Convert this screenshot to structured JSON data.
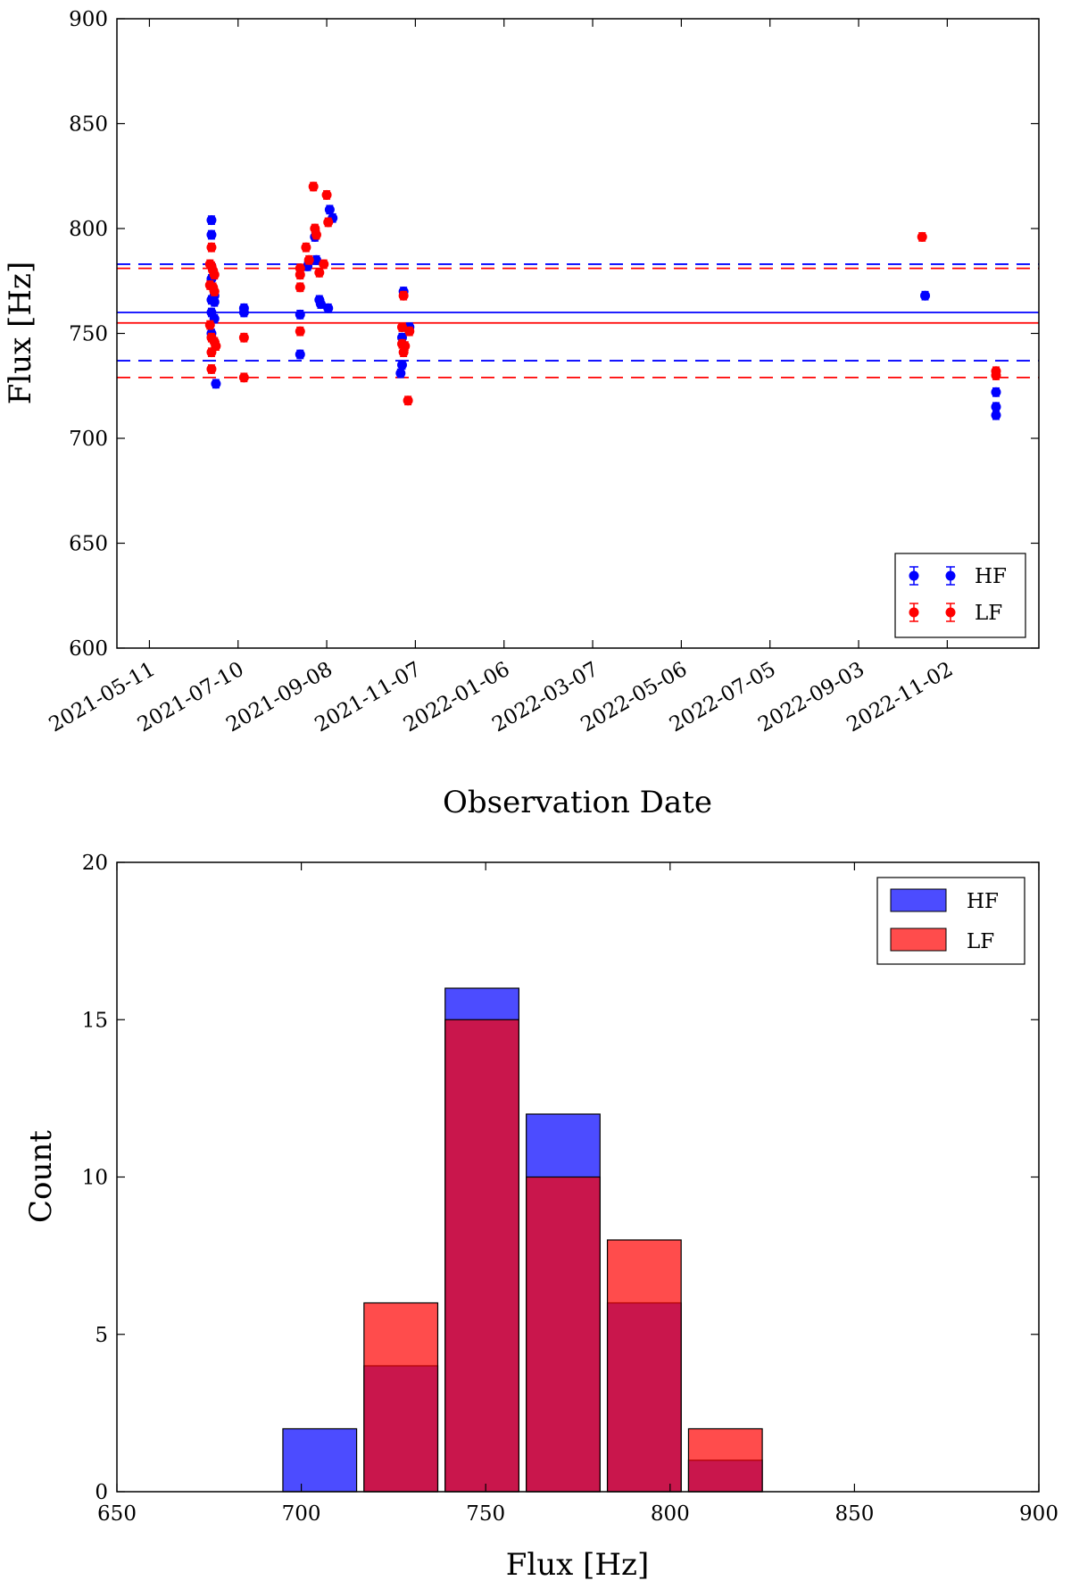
{
  "chart_data": [
    {
      "type": "scatter",
      "title": "",
      "xlabel": "Observation Date",
      "ylabel": "Flux [Hz]",
      "ylim": [
        600,
        900
      ],
      "yticks": [
        "600",
        "650",
        "700",
        "750",
        "800",
        "850",
        "900"
      ],
      "xlim_days": [
        -22,
        602
      ],
      "xticks": [
        {
          "label": "2021-05-11",
          "day": 0
        },
        {
          "label": "2021-07-10",
          "day": 60
        },
        {
          "label": "2021-09-08",
          "day": 120
        },
        {
          "label": "2021-11-07",
          "day": 180
        },
        {
          "label": "2022-01-06",
          "day": 240
        },
        {
          "label": "2022-03-07",
          "day": 300
        },
        {
          "label": "2022-05-06",
          "day": 360
        },
        {
          "label": "2022-07-05",
          "day": 420
        },
        {
          "label": "2022-09-03",
          "day": 480
        },
        {
          "label": "2022-11-02",
          "day": 540
        }
      ],
      "legend": {
        "location": "lower-right",
        "entries": [
          "HF",
          "LF"
        ]
      },
      "series": [
        {
          "name": "HF",
          "color": "#0000ff",
          "mean": 760,
          "band": [
            737,
            783
          ],
          "error": 2,
          "points": [
            [
              42,
              804
            ],
            [
              42,
              797
            ],
            [
              42,
              776
            ],
            [
              42,
              766
            ],
            [
              42,
              760
            ],
            [
              42,
              750
            ],
            [
              44,
              768
            ],
            [
              44,
              765
            ],
            [
              44,
              757
            ],
            [
              45,
              726
            ],
            [
              64,
              762
            ],
            [
              64,
              760
            ],
            [
              102,
              759
            ],
            [
              102,
              740
            ],
            [
              107,
              782
            ],
            [
              112,
              796
            ],
            [
              113,
              785
            ],
            [
              115,
              766
            ],
            [
              116,
              764
            ],
            [
              121,
              762
            ],
            [
              122,
              809
            ],
            [
              124,
              805
            ],
            [
              172,
              770
            ],
            [
              171,
              735
            ],
            [
              170,
              731
            ],
            [
              171,
              748
            ],
            [
              176,
              753
            ],
            [
              525,
              768
            ],
            [
              573,
              722
            ],
            [
              573,
              715
            ],
            [
              573,
              711
            ]
          ]
        },
        {
          "name": "LF",
          "color": "#ff0000",
          "mean": 755,
          "band": [
            729,
            781
          ],
          "error": 2,
          "points": [
            [
              41,
              783
            ],
            [
              41,
              773
            ],
            [
              41,
              754
            ],
            [
              42,
              791
            ],
            [
              42,
              782
            ],
            [
              42,
              748
            ],
            [
              42,
              741
            ],
            [
              42,
              733
            ],
            [
              43,
              780
            ],
            [
              43,
              772
            ],
            [
              44,
              770
            ],
            [
              44,
              778
            ],
            [
              44,
              746
            ],
            [
              45,
              744
            ],
            [
              64,
              748
            ],
            [
              64,
              729
            ],
            [
              102,
              781
            ],
            [
              102,
              778
            ],
            [
              102,
              772
            ],
            [
              102,
              751
            ],
            [
              106,
              791
            ],
            [
              108,
              785
            ],
            [
              111,
              820
            ],
            [
              112,
              800
            ],
            [
              113,
              797
            ],
            [
              115,
              779
            ],
            [
              118,
              783
            ],
            [
              120,
              816
            ],
            [
              121,
              803
            ],
            [
              171,
              753
            ],
            [
              171,
              745
            ],
            [
              172,
              741
            ],
            [
              172,
              768
            ],
            [
              173,
              744
            ],
            [
              175,
              718
            ],
            [
              176,
              751
            ],
            [
              523,
              796
            ],
            [
              573,
              732
            ],
            [
              573,
              730
            ]
          ]
        }
      ]
    },
    {
      "type": "bar",
      "title": "",
      "xlabel": "Flux [Hz]",
      "ylabel": "Count",
      "xlim": [
        650,
        900
      ],
      "ylim": [
        0,
        20
      ],
      "xticks": [
        "650",
        "700",
        "750",
        "800",
        "850",
        "900"
      ],
      "yticks": [
        "0",
        "5",
        "10",
        "15",
        "20"
      ],
      "legend": {
        "location": "top-right",
        "entries": [
          "HF",
          "LF"
        ]
      },
      "series": [
        {
          "name": "HF",
          "color": "#0000ff",
          "alpha": 0.7,
          "bins": [
            {
              "left": 695,
              "right": 715,
              "count": 2
            },
            {
              "left": 717,
              "right": 737,
              "count": 4
            },
            {
              "left": 739,
              "right": 759,
              "count": 16
            },
            {
              "left": 761,
              "right": 781,
              "count": 12
            },
            {
              "left": 783,
              "right": 803,
              "count": 6
            },
            {
              "left": 805,
              "right": 825,
              "count": 1
            }
          ]
        },
        {
          "name": "LF",
          "color": "#ff0000",
          "alpha": 0.7,
          "bins": [
            {
              "left": 717,
              "right": 737,
              "count": 6
            },
            {
              "left": 739,
              "right": 759,
              "count": 15
            },
            {
              "left": 761,
              "right": 781,
              "count": 10
            },
            {
              "left": 783,
              "right": 803,
              "count": 8
            },
            {
              "left": 805,
              "right": 825,
              "count": 2
            }
          ]
        }
      ]
    }
  ]
}
